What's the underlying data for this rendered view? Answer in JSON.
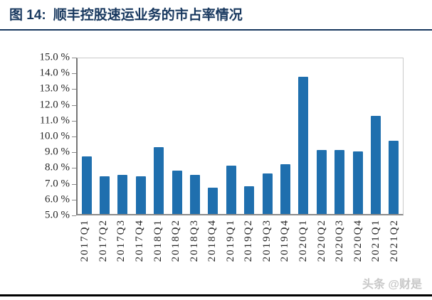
{
  "header": {
    "figure_label": "图 14:",
    "title": "顺丰控股速运业务的市占率情况"
  },
  "footer": {
    "watermark": "头条 @财是"
  },
  "chart_data": {
    "type": "bar",
    "title": "顺丰控股速运业务的市占率情况",
    "categories": [
      "2017Q1",
      "2017Q2",
      "2017Q3",
      "2017Q4",
      "2018Q1",
      "2018Q2",
      "2018Q3",
      "2018Q4",
      "2019Q1",
      "2019Q2",
      "2019Q3",
      "2019Q4",
      "2020Q1",
      "2020Q2",
      "2020Q3",
      "2020Q4",
      "2021Q1",
      "2021Q2"
    ],
    "values": [
      8.7,
      7.4,
      7.5,
      7.4,
      9.3,
      7.8,
      7.5,
      6.7,
      8.1,
      6.8,
      7.6,
      8.2,
      13.8,
      9.1,
      9.1,
      9.0,
      11.3,
      9.7
    ],
    "xlabel": "",
    "ylabel": "",
    "ylim": [
      5,
      15
    ],
    "y_tick_step": 1,
    "y_tick_labels": [
      "15.0 %",
      "14.0 %",
      "13.0 %",
      "12.0 %",
      "11.0 %",
      "10.0 %",
      "9.0 %",
      "8.0 %",
      "7.0 %",
      "6.0 %",
      "5.0 %"
    ],
    "bar_color": "#1f6fae",
    "grid": false,
    "legend": "none"
  }
}
